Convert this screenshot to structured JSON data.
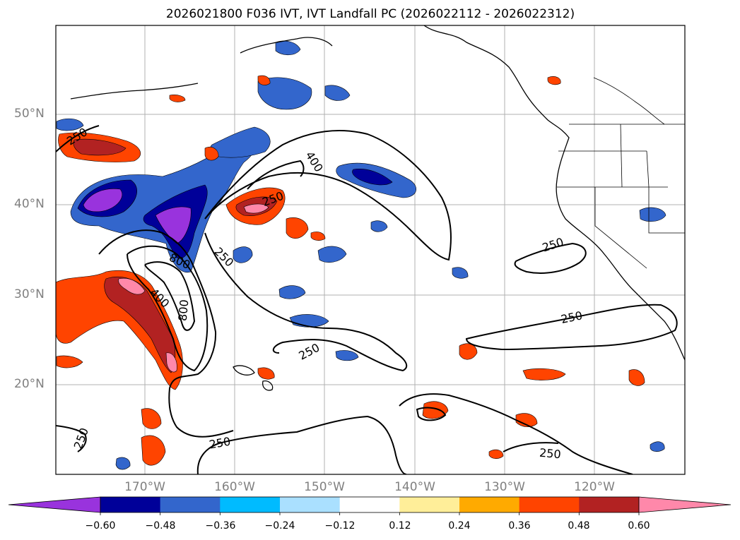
{
  "title": "2026021800 F036 IVT, IVT Landfall PC (2026022112 - 2026022312)",
  "map": {
    "lat_labels": [
      "50°N",
      "40°N",
      "30°N",
      "20°N"
    ],
    "lon_labels": [
      "170°W",
      "160°W",
      "150°W",
      "140°W",
      "130°W",
      "120°W"
    ],
    "contour_labels": [
      "250",
      "400",
      "250",
      "800",
      "250",
      "400",
      "800",
      "250",
      "250",
      "250",
      "250",
      "250",
      "250"
    ]
  },
  "colorbar": {
    "colors": [
      "#9933dd",
      "#000099",
      "#3366cc",
      "#00bbff",
      "#aae0ff",
      "#ffffff",
      "#ffee99",
      "#ffaa00",
      "#ff4400",
      "#b22222",
      "#ff88aa"
    ],
    "ticks": [
      "−0.60",
      "−0.48",
      "−0.36",
      "−0.24",
      "−0.12",
      "0.12",
      "0.24",
      "0.36",
      "0.48",
      "0.60"
    ]
  }
}
